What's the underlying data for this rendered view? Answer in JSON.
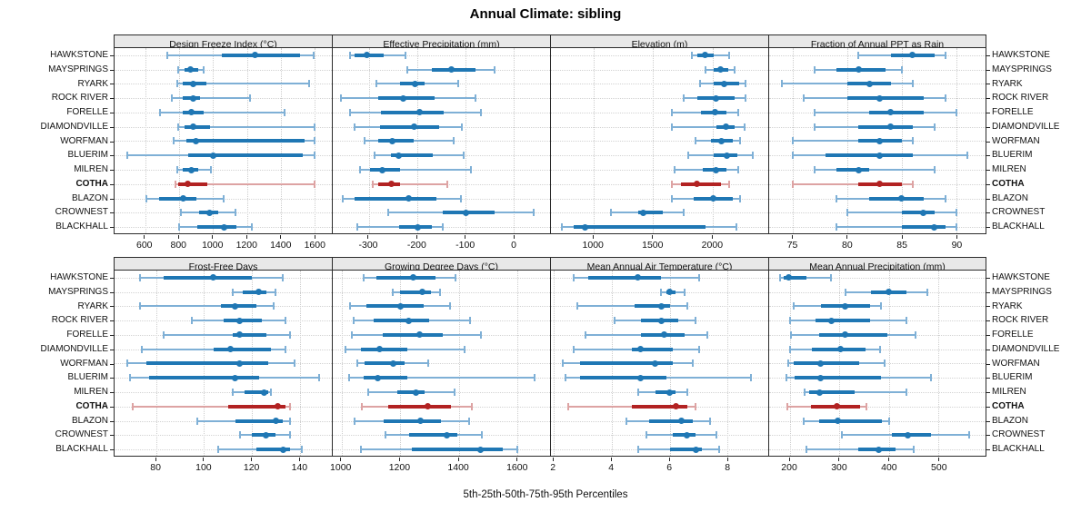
{
  "title": "Annual Climate: sibling",
  "footer": "5th-25th-50th-75th-95th Percentiles",
  "stations": [
    "HAWKSTONE",
    "MAYSPRINGS",
    "RYARK",
    "ROCK RIVER",
    "FORELLE",
    "DIAMONDVILLE",
    "WORFMAN",
    "BLUERIM",
    "MILREN",
    "COTHA",
    "BLAZON",
    "CROWNEST",
    "BLACKHALL"
  ],
  "highlight_station": "COTHA",
  "colors": {
    "blue": "#1f77b4",
    "blue_light": "#7fb0d6",
    "red": "#b22222",
    "red_light": "#dda3a3",
    "strip_bg": "#e8e8e8",
    "grid": "#d2d2d2"
  },
  "chart_data": [
    {
      "type": "errorbar",
      "title": "Design Freeze Index (°C)",
      "percentile_labels": [
        "5th",
        "25th",
        "50th",
        "75th",
        "95th"
      ],
      "xlim": [
        420,
        1700
      ],
      "ticks": [
        600,
        800,
        1000,
        1200,
        1400,
        1600
      ],
      "values": [
        [
          730,
          1050,
          1250,
          1510,
          1595
        ],
        [
          795,
          830,
          865,
          915,
          945
        ],
        [
          790,
          820,
          885,
          960,
          1565
        ],
        [
          760,
          820,
          885,
          925,
          1220
        ],
        [
          690,
          820,
          875,
          945,
          1420
        ],
        [
          795,
          835,
          885,
          985,
          1600
        ],
        [
          770,
          845,
          900,
          1540,
          1600
        ],
        [
          495,
          855,
          1000,
          1530,
          1600
        ],
        [
          790,
          820,
          870,
          915,
          990
        ],
        [
          780,
          795,
          850,
          965,
          1600
        ],
        [
          605,
          685,
          825,
          900,
          1065
        ],
        [
          810,
          920,
          980,
          1030,
          1130
        ],
        [
          800,
          905,
          1065,
          1140,
          1230
        ]
      ]
    },
    {
      "type": "errorbar",
      "title": "Effective Precipitation (mm)",
      "xlim": [
        -375,
        75
      ],
      "ticks": [
        -300,
        -200,
        -100,
        0
      ],
      "values": [
        [
          -340,
          -330,
          -305,
          -270,
          -225
        ],
        [
          -220,
          -170,
          -130,
          -80,
          -40
        ],
        [
          -285,
          -235,
          -205,
          -185,
          -115
        ],
        [
          -358,
          -280,
          -230,
          -165,
          -80
        ],
        [
          -340,
          -275,
          -195,
          -145,
          -68
        ],
        [
          -330,
          -277,
          -206,
          -155,
          -108
        ],
        [
          -310,
          -280,
          -252,
          -208,
          -124
        ],
        [
          -288,
          -255,
          -238,
          -168,
          -103
        ],
        [
          -318,
          -298,
          -272,
          -236,
          -88
        ],
        [
          -293,
          -280,
          -254,
          -235,
          -138
        ],
        [
          -354,
          -330,
          -218,
          -160,
          -110
        ],
        [
          -260,
          -147,
          -100,
          -39,
          42
        ],
        [
          -325,
          -238,
          -199,
          -170,
          -147
        ]
      ]
    },
    {
      "type": "errorbar",
      "title": "Elevation (m)",
      "xlim": [
        640,
        2470
      ],
      "ticks": [
        1000,
        1500,
        2000
      ],
      "values": [
        [
          1825,
          1870,
          1935,
          2010,
          2140
        ],
        [
          1945,
          2010,
          2070,
          2135,
          2190
        ],
        [
          1895,
          2010,
          2100,
          2225,
          2275
        ],
        [
          1760,
          1870,
          2030,
          2185,
          2280
        ],
        [
          1660,
          1900,
          2020,
          2120,
          2220
        ],
        [
          1660,
          2030,
          2115,
          2190,
          2270
        ],
        [
          1855,
          1990,
          2075,
          2175,
          2230
        ],
        [
          1795,
          2010,
          2125,
          2210,
          2340
        ],
        [
          1685,
          1920,
          2030,
          2115,
          2220
        ],
        [
          1655,
          1735,
          1870,
          2075,
          2140
        ],
        [
          1660,
          1840,
          2005,
          2170,
          2230
        ],
        [
          1145,
          1375,
          1420,
          1585,
          1760
        ],
        [
          735,
          830,
          925,
          1945,
          2200
        ]
      ]
    },
    {
      "type": "errorbar",
      "title": "Fraction of Annual PPT as Rain",
      "xlim": [
        72.8,
        92.7
      ],
      "ticks": [
        75,
        80,
        85,
        90
      ],
      "values": [
        [
          81,
          84,
          86,
          88,
          89
        ],
        [
          77,
          79,
          81,
          83.5,
          85
        ],
        [
          74,
          80,
          82,
          84,
          86
        ],
        [
          76,
          80,
          83,
          87,
          89
        ],
        [
          77,
          82,
          84,
          87,
          90
        ],
        [
          77,
          81,
          84,
          86,
          88
        ],
        [
          75,
          81,
          83,
          85,
          86
        ],
        [
          75,
          78,
          83,
          86,
          91
        ],
        [
          77,
          79,
          81,
          82,
          88
        ],
        [
          75,
          81,
          83,
          85,
          86
        ],
        [
          79,
          82,
          85,
          87,
          89
        ],
        [
          80,
          85,
          87,
          88,
          90
        ],
        [
          79,
          85,
          88,
          89,
          90
        ]
      ]
    },
    {
      "type": "errorbar",
      "title": "Frost-Free Days",
      "xlim": [
        62.5,
        153.5
      ],
      "ticks": [
        80,
        100,
        120,
        140
      ],
      "values": [
        [
          73,
          83,
          104,
          120,
          133
        ],
        [
          112,
          116,
          123,
          126,
          130
        ],
        [
          73,
          107,
          113,
          122,
          129
        ],
        [
          95,
          108,
          115,
          124,
          134
        ],
        [
          83,
          112,
          115,
          126,
          136
        ],
        [
          74,
          104,
          111,
          128,
          134
        ],
        [
          68,
          76,
          115,
          127,
          138
        ],
        [
          69,
          77,
          113,
          123,
          148
        ],
        [
          112,
          117,
          125,
          127,
          128
        ],
        [
          70,
          110,
          131,
          134,
          136
        ],
        [
          97,
          113,
          130,
          133,
          136
        ],
        [
          115,
          120,
          126,
          130,
          136
        ],
        [
          106,
          122,
          133,
          136,
          141
        ]
      ]
    },
    {
      "type": "errorbar",
      "title": "Growing Degree Days (°C)",
      "xlim": [
        970,
        1712
      ],
      "ticks": [
        1000,
        1200,
        1400,
        1600
      ],
      "values": [
        [
          1075,
          1120,
          1245,
          1320,
          1390
        ],
        [
          1175,
          1200,
          1275,
          1305,
          1335
        ],
        [
          1030,
          1085,
          1200,
          1280,
          1370
        ],
        [
          1040,
          1110,
          1230,
          1300,
          1440
        ],
        [
          1035,
          1140,
          1265,
          1345,
          1475
        ],
        [
          1015,
          1065,
          1130,
          1225,
          1420
        ],
        [
          1055,
          1080,
          1175,
          1215,
          1295
        ],
        [
          1025,
          1075,
          1125,
          1225,
          1660
        ],
        [
          1090,
          1190,
          1255,
          1285,
          1385
        ],
        [
          1070,
          1160,
          1295,
          1375,
          1445
        ],
        [
          1045,
          1145,
          1270,
          1340,
          1435
        ],
        [
          1150,
          1230,
          1360,
          1395,
          1480
        ],
        [
          1065,
          1240,
          1475,
          1550,
          1600
        ]
      ]
    },
    {
      "type": "errorbar",
      "title": "Mean Annual Air Temperature (°C)",
      "xlim": [
        1.9,
        9.4
      ],
      "ticks": [
        2,
        4,
        6,
        8
      ],
      "values": [
        [
          2.7,
          3.2,
          4.9,
          5.7,
          7.0
        ],
        [
          5.7,
          5.9,
          6.0,
          6.2,
          6.5
        ],
        [
          2.8,
          4.8,
          5.7,
          6.0,
          6.6
        ],
        [
          4.1,
          5.0,
          5.7,
          6.3,
          6.9
        ],
        [
          3.1,
          5.0,
          5.8,
          6.5,
          7.3
        ],
        [
          2.7,
          4.7,
          5.0,
          6.1,
          7.0
        ],
        [
          2.3,
          2.9,
          5.5,
          6.1,
          6.8
        ],
        [
          2.4,
          2.9,
          5.0,
          5.9,
          8.8
        ],
        [
          4.9,
          5.5,
          6.0,
          6.2,
          6.6
        ],
        [
          2.5,
          4.7,
          6.2,
          6.6,
          6.9
        ],
        [
          4.5,
          5.3,
          6.4,
          6.8,
          7.4
        ],
        [
          5.2,
          6.1,
          6.6,
          6.9,
          7.6
        ],
        [
          4.9,
          6.0,
          6.9,
          7.1,
          7.7
        ]
      ]
    },
    {
      "type": "errorbar",
      "title": "Mean Annual Precipitation (mm)",
      "xlim": [
        158,
        595
      ],
      "ticks": [
        200,
        300,
        400,
        500
      ],
      "values": [
        [
          180,
          187,
          197,
          233,
          282
        ],
        [
          313,
          364,
          399,
          436,
          477
        ],
        [
          208,
          262,
          312,
          361,
          384
        ],
        [
          200,
          252,
          283,
          362,
          436
        ],
        [
          202,
          259,
          312,
          396,
          453
        ],
        [
          200,
          244,
          303,
          352,
          382
        ],
        [
          196,
          208,
          261,
          339,
          391
        ],
        [
          192,
          209,
          261,
          384,
          485
        ],
        [
          230,
          239,
          259,
          330,
          435
        ],
        [
          194,
          242,
          295,
          342,
          355
        ],
        [
          228,
          259,
          297,
          385,
          400
        ],
        [
          305,
          405,
          438,
          485,
          562
        ],
        [
          233,
          338,
          379,
          414,
          450
        ]
      ]
    }
  ]
}
